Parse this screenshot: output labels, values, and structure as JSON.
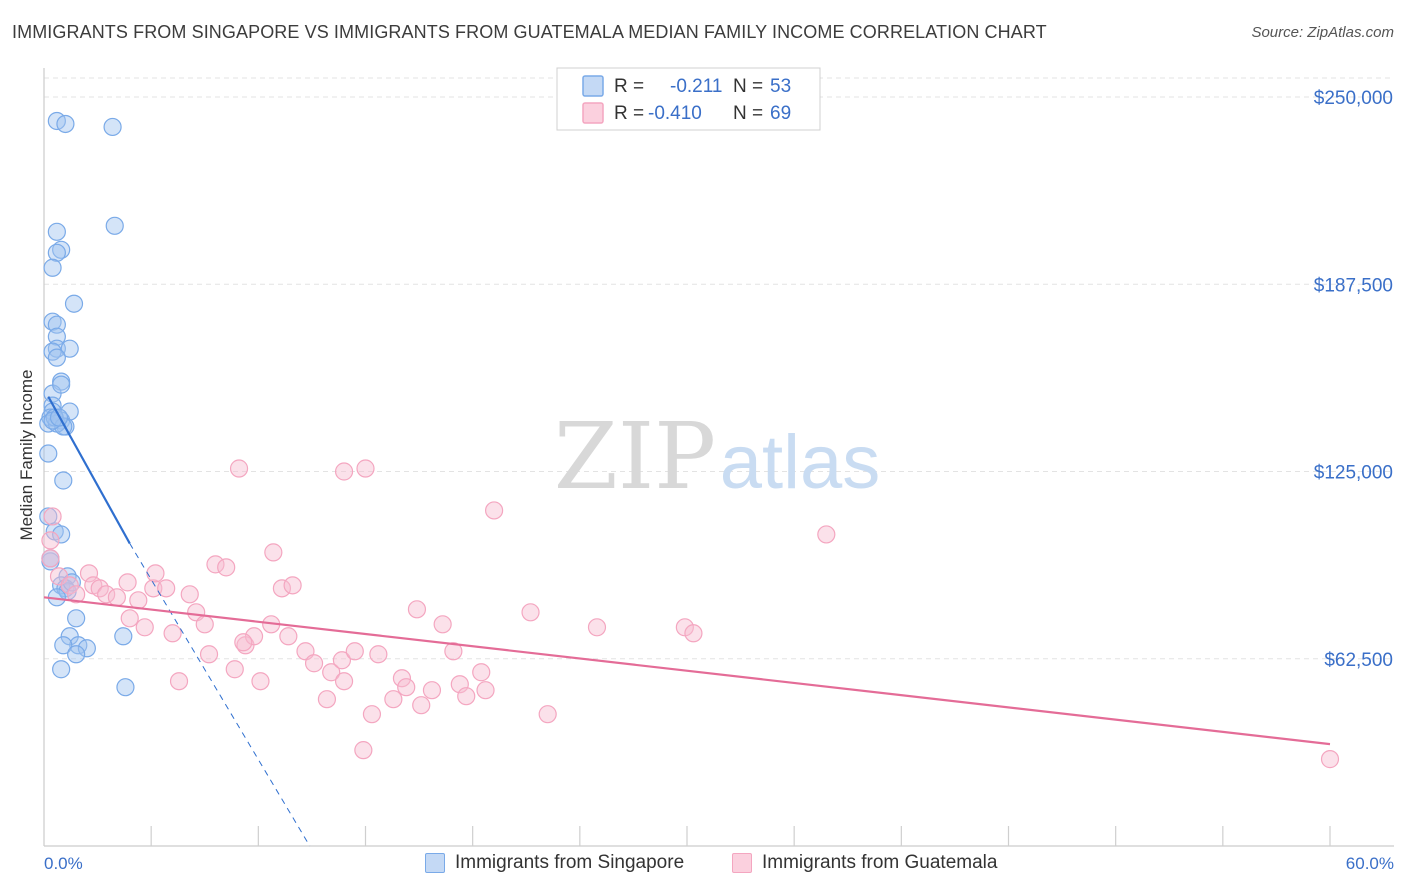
{
  "chart_data": {
    "type": "scatter",
    "title": "IMMIGRANTS FROM SINGAPORE VS IMMIGRANTS FROM GUATEMALA MEDIAN FAMILY INCOME CORRELATION CHART",
    "source": "Source: ZipAtlas.com",
    "xlabel": "",
    "ylabel": "Median Family Income",
    "xlim": [
      0,
      60
    ],
    "ylim": [
      0,
      250000
    ],
    "x_tick_labels": [
      "0.0%",
      "60.0%"
    ],
    "y_ticks": [
      62500,
      125000,
      187500,
      250000
    ],
    "y_tick_labels": [
      "$62,500",
      "$125,000",
      "$187,500",
      "$250,000"
    ],
    "watermark": {
      "zip": "ZIP",
      "atlas": "atlas"
    },
    "stats": [
      {
        "r_label": "R =",
        "r_value": "-0.211",
        "n_label": "N =",
        "n_value": "53"
      },
      {
        "r_label": "R =",
        "r_value": "-0.410",
        "n_label": "N =",
        "n_value": 69
      }
    ],
    "series": [
      {
        "name": "Immigrants from Singapore",
        "color": "#7aaae8",
        "line_color": "#2f6fcf",
        "points": [
          [
            0.6,
            242000
          ],
          [
            1.0,
            241000
          ],
          [
            3.2,
            240000
          ],
          [
            3.3,
            207000
          ],
          [
            0.6,
            205000
          ],
          [
            0.8,
            199000
          ],
          [
            0.6,
            198000
          ],
          [
            0.4,
            193000
          ],
          [
            1.4,
            181000
          ],
          [
            0.4,
            175000
          ],
          [
            0.6,
            174000
          ],
          [
            0.6,
            170000
          ],
          [
            0.6,
            166000
          ],
          [
            0.4,
            165000
          ],
          [
            1.2,
            166000
          ],
          [
            0.6,
            163000
          ],
          [
            0.8,
            155000
          ],
          [
            0.4,
            151000
          ],
          [
            0.8,
            154000
          ],
          [
            0.4,
            147000
          ],
          [
            0.4,
            145000
          ],
          [
            1.2,
            145000
          ],
          [
            0.3,
            143000
          ],
          [
            0.2,
            141000
          ],
          [
            0.8,
            142000
          ],
          [
            1.0,
            140000
          ],
          [
            0.6,
            141000
          ],
          [
            0.2,
            131000
          ],
          [
            0.9,
            122000
          ],
          [
            0.2,
            110000
          ],
          [
            0.5,
            105000
          ],
          [
            0.8,
            104000
          ],
          [
            0.3,
            95000
          ],
          [
            1.1,
            90000
          ],
          [
            0.8,
            87000
          ],
          [
            1.0,
            86000
          ],
          [
            1.1,
            85000
          ],
          [
            0.6,
            83000
          ],
          [
            1.5,
            76000
          ],
          [
            3.7,
            70000
          ],
          [
            1.2,
            70000
          ],
          [
            1.6,
            67000
          ],
          [
            0.9,
            67000
          ],
          [
            2.0,
            66000
          ],
          [
            1.5,
            64000
          ],
          [
            0.8,
            59000
          ],
          [
            3.8,
            53000
          ],
          [
            0.5,
            143000
          ],
          [
            0.9,
            140000
          ],
          [
            0.4,
            142000
          ],
          [
            0.7,
            143000
          ],
          [
            0.3,
            96000
          ],
          [
            1.3,
            88000
          ]
        ],
        "trend": {
          "x1": 0.2,
          "y1": 150000,
          "x2": 4.0,
          "y2": 101000,
          "dash_to_x": 12.4,
          "dash_to_y": 0
        }
      },
      {
        "name": "Immigrants from Guatemala",
        "color": "#f4a6c0",
        "line_color": "#e46c97",
        "points": [
          [
            0.4,
            110000
          ],
          [
            0.3,
            102000
          ],
          [
            0.3,
            96000
          ],
          [
            0.7,
            90000
          ],
          [
            1.2,
            87000
          ],
          [
            1.5,
            84000
          ],
          [
            2.1,
            91000
          ],
          [
            2.3,
            87000
          ],
          [
            2.6,
            86000
          ],
          [
            2.9,
            84000
          ],
          [
            3.4,
            83000
          ],
          [
            3.9,
            88000
          ],
          [
            4.0,
            76000
          ],
          [
            4.4,
            82000
          ],
          [
            4.7,
            73000
          ],
          [
            5.1,
            86000
          ],
          [
            5.2,
            91000
          ],
          [
            5.7,
            86000
          ],
          [
            6.0,
            71000
          ],
          [
            6.3,
            55000
          ],
          [
            6.8,
            84000
          ],
          [
            7.1,
            78000
          ],
          [
            7.5,
            74000
          ],
          [
            7.7,
            64000
          ],
          [
            8.0,
            94000
          ],
          [
            8.5,
            93000
          ],
          [
            8.9,
            59000
          ],
          [
            9.1,
            126000
          ],
          [
            9.4,
            67000
          ],
          [
            9.8,
            70000
          ],
          [
            10.1,
            55000
          ],
          [
            10.6,
            74000
          ],
          [
            10.7,
            98000
          ],
          [
            11.1,
            86000
          ],
          [
            11.4,
            70000
          ],
          [
            11.6,
            87000
          ],
          [
            12.2,
            65000
          ],
          [
            12.6,
            61000
          ],
          [
            13.2,
            49000
          ],
          [
            13.4,
            58000
          ],
          [
            13.9,
            62000
          ],
          [
            14.0,
            55000
          ],
          [
            14.5,
            65000
          ],
          [
            14.9,
            32000
          ],
          [
            15.0,
            126000
          ],
          [
            15.3,
            44000
          ],
          [
            15.6,
            64000
          ],
          [
            16.3,
            49000
          ],
          [
            16.7,
            56000
          ],
          [
            16.9,
            53000
          ],
          [
            17.4,
            79000
          ],
          [
            17.6,
            47000
          ],
          [
            18.1,
            52000
          ],
          [
            18.6,
            74000
          ],
          [
            19.1,
            65000
          ],
          [
            19.4,
            54000
          ],
          [
            19.7,
            50000
          ],
          [
            20.4,
            58000
          ],
          [
            20.6,
            52000
          ],
          [
            21.0,
            112000
          ],
          [
            22.7,
            78000
          ],
          [
            23.5,
            44000
          ],
          [
            25.8,
            73000
          ],
          [
            29.9,
            73000
          ],
          [
            30.3,
            71000
          ],
          [
            36.5,
            104000
          ],
          [
            60.0,
            29000
          ],
          [
            14.0,
            125000
          ],
          [
            9.3,
            68000
          ]
        ],
        "trend": {
          "x1": 0.0,
          "y1": 83000,
          "x2": 60.0,
          "y2": 34000
        }
      }
    ]
  }
}
